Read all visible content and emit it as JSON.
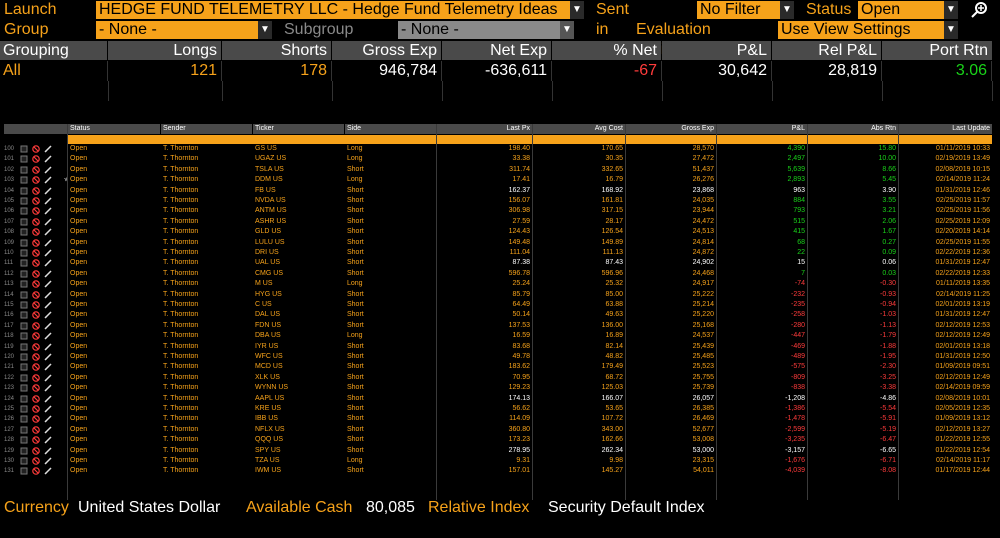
{
  "header": {
    "launch_label": "Launch",
    "launch_value": "HEDGE FUND TELEMETRY LLC - Hedge Fund Telemetry Ideas",
    "sent_in_past_label": "Sent in Past",
    "sent_in_past_value": "No Filter",
    "status_label": "Status",
    "status_value": "Open",
    "group_by_label": "Group By",
    "group_by_value": "- None -",
    "subgroup_by_label": "Subgroup By",
    "subgroup_by_value": "- None -",
    "evaluation_period_label": "Evaluation Period",
    "evaluation_period_value": "Use View Settings"
  },
  "summary": {
    "headers": [
      "Grouping",
      "Longs",
      "Shorts",
      "Gross Exp",
      "Net Exp",
      "% Net",
      "P&L",
      "Rel P&L",
      "Port Rtn"
    ],
    "values": [
      "All",
      "121",
      "178",
      "946,784",
      "-636,611",
      "-67",
      "30,642",
      "28,819",
      "3.06"
    ]
  },
  "table": {
    "headers": [
      "Status",
      "Sender",
      "Ticker",
      "Side",
      "Last Px",
      "Avg Cost",
      "Gross Exp",
      "P&L",
      "Abs Rtn",
      "Last Update"
    ],
    "rows": [
      {
        "n": "100",
        "status": "Open",
        "sender": "T. Thornton",
        "ticker": "GS US",
        "side": "Long",
        "last": "198.40",
        "avg": "170.65",
        "gross": "28,570",
        "pnl": "4,390",
        "abs": "15.80",
        "upd": "01/11/2019 10:33",
        "flag": ""
      },
      {
        "n": "101",
        "status": "Open",
        "sender": "T. Thornton",
        "ticker": "UGAZ US",
        "side": "Long",
        "last": "33.38",
        "avg": "30.35",
        "gross": "27,472",
        "pnl": "2,497",
        "abs": "10.00",
        "upd": "02/19/2019 13:49",
        "flag": ""
      },
      {
        "n": "102",
        "status": "Open",
        "sender": "T. Thornton",
        "ticker": "TSLA US",
        "side": "Short",
        "last": "311.74",
        "avg": "332.65",
        "gross": "51,437",
        "pnl": "5,639",
        "abs": "8.66",
        "upd": "02/08/2019 10:15",
        "flag": ""
      },
      {
        "n": "103",
        "status": "Open",
        "sender": "T. Thornton",
        "ticker": "DDM US",
        "side": "Long",
        "last": "17.41",
        "avg": "16.79",
        "gross": "26,276",
        "pnl": "2,893",
        "abs": "5.45",
        "upd": "02/14/2019 11:24",
        "flag": "√"
      },
      {
        "n": "104",
        "status": "Open",
        "sender": "T. Thornton",
        "ticker": "FB US",
        "side": "Short",
        "last": "162.37",
        "avg": "168.92",
        "gross": "23,868",
        "pnl": "963",
        "abs": "3.90",
        "upd": "01/31/2019 12:46",
        "flag": ""
      },
      {
        "n": "105",
        "status": "Open",
        "sender": "T. Thornton",
        "ticker": "NVDA US",
        "side": "Short",
        "last": "156.07",
        "avg": "161.81",
        "gross": "24,035",
        "pnl": "884",
        "abs": "3.55",
        "upd": "02/25/2019 11:57",
        "flag": ""
      },
      {
        "n": "106",
        "status": "Open",
        "sender": "T. Thornton",
        "ticker": "ANTM US",
        "side": "Short",
        "last": "306.98",
        "avg": "317.15",
        "gross": "23,944",
        "pnl": "793",
        "abs": "3.21",
        "upd": "02/25/2019 11:56",
        "flag": ""
      },
      {
        "n": "107",
        "status": "Open",
        "sender": "T. Thornton",
        "ticker": "ASHR US",
        "side": "Short",
        "last": "27.59",
        "avg": "28.17",
        "gross": "24,472",
        "pnl": "515",
        "abs": "2.06",
        "upd": "02/25/2019 12:09",
        "flag": ""
      },
      {
        "n": "108",
        "status": "Open",
        "sender": "T. Thornton",
        "ticker": "GLD US",
        "side": "Short",
        "last": "124.43",
        "avg": "126.54",
        "gross": "24,513",
        "pnl": "415",
        "abs": "1.67",
        "upd": "02/20/2019 14:14",
        "flag": ""
      },
      {
        "n": "109",
        "status": "Open",
        "sender": "T. Thornton",
        "ticker": "LULU US",
        "side": "Short",
        "last": "149.48",
        "avg": "149.89",
        "gross": "24,814",
        "pnl": "68",
        "abs": "0.27",
        "upd": "02/25/2019 11:55",
        "flag": ""
      },
      {
        "n": "110",
        "status": "Open",
        "sender": "T. Thornton",
        "ticker": "DRI US",
        "side": "Short",
        "last": "111.04",
        "avg": "111.13",
        "gross": "24,872",
        "pnl": "22",
        "abs": "0.09",
        "upd": "02/22/2019 12:36",
        "flag": ""
      },
      {
        "n": "111",
        "status": "Open",
        "sender": "T. Thornton",
        "ticker": "UAL US",
        "side": "Short",
        "last": "87.38",
        "avg": "87.43",
        "gross": "24,902",
        "pnl": "15",
        "abs": "0.06",
        "upd": "01/31/2019 12:47",
        "flag": ""
      },
      {
        "n": "112",
        "status": "Open",
        "sender": "T. Thornton",
        "ticker": "CMG US",
        "side": "Short",
        "last": "596.78",
        "avg": "596.96",
        "gross": "24,468",
        "pnl": "7",
        "abs": "0.03",
        "upd": "02/22/2019 12:33",
        "flag": ""
      },
      {
        "n": "113",
        "status": "Open",
        "sender": "T. Thornton",
        "ticker": "M US",
        "side": "Long",
        "last": "25.24",
        "avg": "25.32",
        "gross": "24,917",
        "pnl": "-74",
        "abs": "-0.30",
        "upd": "01/11/2019 13:35",
        "flag": ""
      },
      {
        "n": "114",
        "status": "Open",
        "sender": "T. Thornton",
        "ticker": "HYG US",
        "side": "Short",
        "last": "85.79",
        "avg": "85.00",
        "gross": "25,222",
        "pnl": "-232",
        "abs": "-0.93",
        "upd": "02/14/2019 11:25",
        "flag": ""
      },
      {
        "n": "115",
        "status": "Open",
        "sender": "T. Thornton",
        "ticker": "C US",
        "side": "Short",
        "last": "64.49",
        "avg": "63.88",
        "gross": "25,214",
        "pnl": "-235",
        "abs": "-0.94",
        "upd": "02/01/2019 13:19",
        "flag": ""
      },
      {
        "n": "116",
        "status": "Open",
        "sender": "T. Thornton",
        "ticker": "DAL US",
        "side": "Short",
        "last": "50.14",
        "avg": "49.63",
        "gross": "25,220",
        "pnl": "-258",
        "abs": "-1.03",
        "upd": "01/31/2019 12:47",
        "flag": ""
      },
      {
        "n": "117",
        "status": "Open",
        "sender": "T. Thornton",
        "ticker": "FDN US",
        "side": "Short",
        "last": "137.53",
        "avg": "136.00",
        "gross": "25,168",
        "pnl": "-280",
        "abs": "-1.13",
        "upd": "02/12/2019 12:53",
        "flag": ""
      },
      {
        "n": "118",
        "status": "Open",
        "sender": "T. Thornton",
        "ticker": "DBA US",
        "side": "Long",
        "last": "16.59",
        "avg": "16.89",
        "gross": "24,537",
        "pnl": "-447",
        "abs": "-1.79",
        "upd": "02/12/2019 12:49",
        "flag": ""
      },
      {
        "n": "119",
        "status": "Open",
        "sender": "T. Thornton",
        "ticker": "IYR US",
        "side": "Short",
        "last": "83.68",
        "avg": "82.14",
        "gross": "25,439",
        "pnl": "-469",
        "abs": "-1.88",
        "upd": "02/01/2019 13:18",
        "flag": ""
      },
      {
        "n": "120",
        "status": "Open",
        "sender": "T. Thornton",
        "ticker": "WFC US",
        "side": "Short",
        "last": "49.78",
        "avg": "48.82",
        "gross": "25,485",
        "pnl": "-489",
        "abs": "-1.95",
        "upd": "01/31/2019 12:50",
        "flag": ""
      },
      {
        "n": "121",
        "status": "Open",
        "sender": "T. Thornton",
        "ticker": "MCD US",
        "side": "Short",
        "last": "183.62",
        "avg": "179.49",
        "gross": "25,523",
        "pnl": "-575",
        "abs": "-2.30",
        "upd": "01/09/2019 09:51",
        "flag": ""
      },
      {
        "n": "122",
        "status": "Open",
        "sender": "T. Thornton",
        "ticker": "XLK US",
        "side": "Short",
        "last": "70.95",
        "avg": "68.72",
        "gross": "25,755",
        "pnl": "-809",
        "abs": "-3.25",
        "upd": "02/12/2019 12:49",
        "flag": ""
      },
      {
        "n": "123",
        "status": "Open",
        "sender": "T. Thornton",
        "ticker": "WYNN US",
        "side": "Short",
        "last": "129.23",
        "avg": "125.03",
        "gross": "25,739",
        "pnl": "-838",
        "abs": "-3.38",
        "upd": "02/14/2019 09:59",
        "flag": ""
      },
      {
        "n": "124",
        "status": "Open",
        "sender": "T. Thornton",
        "ticker": "AAPL US",
        "side": "Short",
        "last": "174.13",
        "avg": "166.07",
        "gross": "26,057",
        "pnl": "-1,208",
        "abs": "-4.86",
        "upd": "02/08/2019 10:01",
        "flag": ""
      },
      {
        "n": "125",
        "status": "Open",
        "sender": "T. Thornton",
        "ticker": "KRE US",
        "side": "Short",
        "last": "56.62",
        "avg": "53.65",
        "gross": "26,385",
        "pnl": "-1,386",
        "abs": "-5.54",
        "upd": "02/05/2019 12:35",
        "flag": ""
      },
      {
        "n": "126",
        "status": "Open",
        "sender": "T. Thornton",
        "ticker": "IBB US",
        "side": "Short",
        "last": "114.09",
        "avg": "107.72",
        "gross": "26,469",
        "pnl": "-1,478",
        "abs": "-5.91",
        "upd": "01/09/2019 13:12",
        "flag": ""
      },
      {
        "n": "127",
        "status": "Open",
        "sender": "T. Thornton",
        "ticker": "NFLX US",
        "side": "Short",
        "last": "360.80",
        "avg": "343.00",
        "gross": "52,677",
        "pnl": "-2,599",
        "abs": "-5.19",
        "upd": "02/12/2019 13:27",
        "flag": ""
      },
      {
        "n": "128",
        "status": "Open",
        "sender": "T. Thornton",
        "ticker": "QQQ US",
        "side": "Short",
        "last": "173.23",
        "avg": "162.66",
        "gross": "53,008",
        "pnl": "-3,235",
        "abs": "-6.47",
        "upd": "01/22/2019 12:55",
        "flag": ""
      },
      {
        "n": "129",
        "status": "Open",
        "sender": "T. Thornton",
        "ticker": "SPY US",
        "side": "Short",
        "last": "278.95",
        "avg": "262.34",
        "gross": "53,000",
        "pnl": "-3,157",
        "abs": "-6.65",
        "upd": "01/22/2019 12:54",
        "flag": ""
      },
      {
        "n": "130",
        "status": "Open",
        "sender": "T. Thornton",
        "ticker": "TZA US",
        "side": "Long",
        "last": "9.31",
        "avg": "9.98",
        "gross": "23,315",
        "pnl": "-1,676",
        "abs": "-6.71",
        "upd": "02/14/2019 11:17",
        "flag": ""
      },
      {
        "n": "131",
        "status": "Open",
        "sender": "T. Thornton",
        "ticker": "IWM US",
        "side": "Short",
        "last": "157.01",
        "avg": "145.27",
        "gross": "54,011",
        "pnl": "-4,039",
        "abs": "-8.08",
        "upd": "01/17/2019 12:44",
        "flag": ""
      }
    ]
  },
  "footer": {
    "currency_label": "Currency",
    "currency_value": "United States Dollar",
    "cash_label": "Available Cash",
    "cash_value": "80,085",
    "relidx_label": "Relative Index",
    "relidx_value": "Security Default Index"
  },
  "colors": {
    "accent": "#f6a21a",
    "positive": "#19d219",
    "negative": "#ff3b3b",
    "header_bg": "#4a4a4a"
  }
}
